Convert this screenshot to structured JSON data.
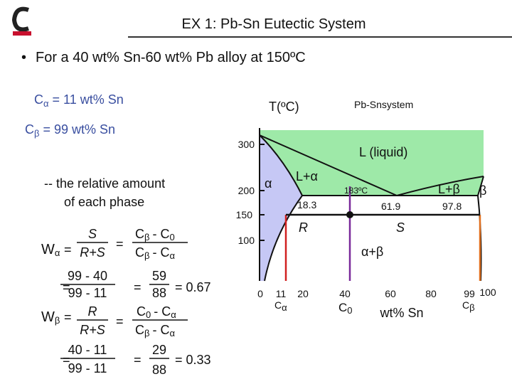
{
  "header": {
    "title": "EX 1:  Pb-Sn Eutectic System",
    "bullet": "•",
    "subtitle": "For a 40 wt% Sn-60 wt% Pb alloy at 150ºC"
  },
  "given": [
    {
      "symbol": "C",
      "sub": "α",
      "text": "= 11 wt% Sn"
    },
    {
      "symbol": "C",
      "sub": "β",
      "text": "= 99 wt% Sn"
    }
  ],
  "note": [
    "-- the relative amount",
    "of each phase"
  ],
  "w_alpha": {
    "symbol": "W",
    "sub": "α",
    "eq": "=",
    "num": "S",
    "den": "R+S",
    "eq2": "=",
    "num2": {
      "a": "C",
      "a_sub": "β",
      "op": "- C",
      "b_sub": "0"
    },
    "den2": {
      "a": "C",
      "a_sub": "β",
      "op": "- C",
      "b_sub": "α"
    },
    "calc": {
      "eq": "=",
      "num": "99 - 40",
      "den": "99 - 11",
      "eq2": "=",
      "num2": "59",
      "den2": "88",
      "result": "= 0.67"
    }
  },
  "w_beta": {
    "symbol": "W",
    "sub": "β",
    "eq": "=",
    "num": "R",
    "den": "R+S",
    "eq2": "=",
    "num2": {
      "a": "C",
      "a_sub": "0",
      "op": "- C",
      "b_sub": "α"
    },
    "den2": {
      "a": "C",
      "a_sub": "β",
      "op": "- C",
      "b_sub": "α"
    },
    "calc": {
      "eq": "=",
      "num": "40 - 11",
      "den": "99 - 11",
      "eq2": "=",
      "num2": "29",
      "den2": "88",
      "result": "= 0.33"
    }
  },
  "diagram": {
    "y_label": "T(ºC)",
    "system": "Pb-Snsystem",
    "yticks": [
      "300",
      "200",
      "150",
      "100"
    ],
    "xticks": [
      "0",
      "11",
      "20",
      "40",
      "60",
      "80",
      "99",
      "100"
    ],
    "x_label": "wt% Sn",
    "compositions": [
      {
        "symbol": "C",
        "sub": "α"
      },
      {
        "symbol": "C",
        "sub": "0"
      },
      {
        "symbol": "C",
        "sub": "β"
      }
    ],
    "regions": {
      "liquid": "L (liquid)",
      "alpha": "α",
      "l_alpha": "L+α",
      "l_beta": "L+β",
      "beta": "β",
      "alpha_beta": "α+β"
    },
    "lever": {
      "r": "R",
      "s": "S"
    },
    "points": {
      "eutectic_temp": "183ºC",
      "alpha_max": "18.3",
      "eutectic_comp": "61.9",
      "beta_max": "97.8"
    }
  }
}
